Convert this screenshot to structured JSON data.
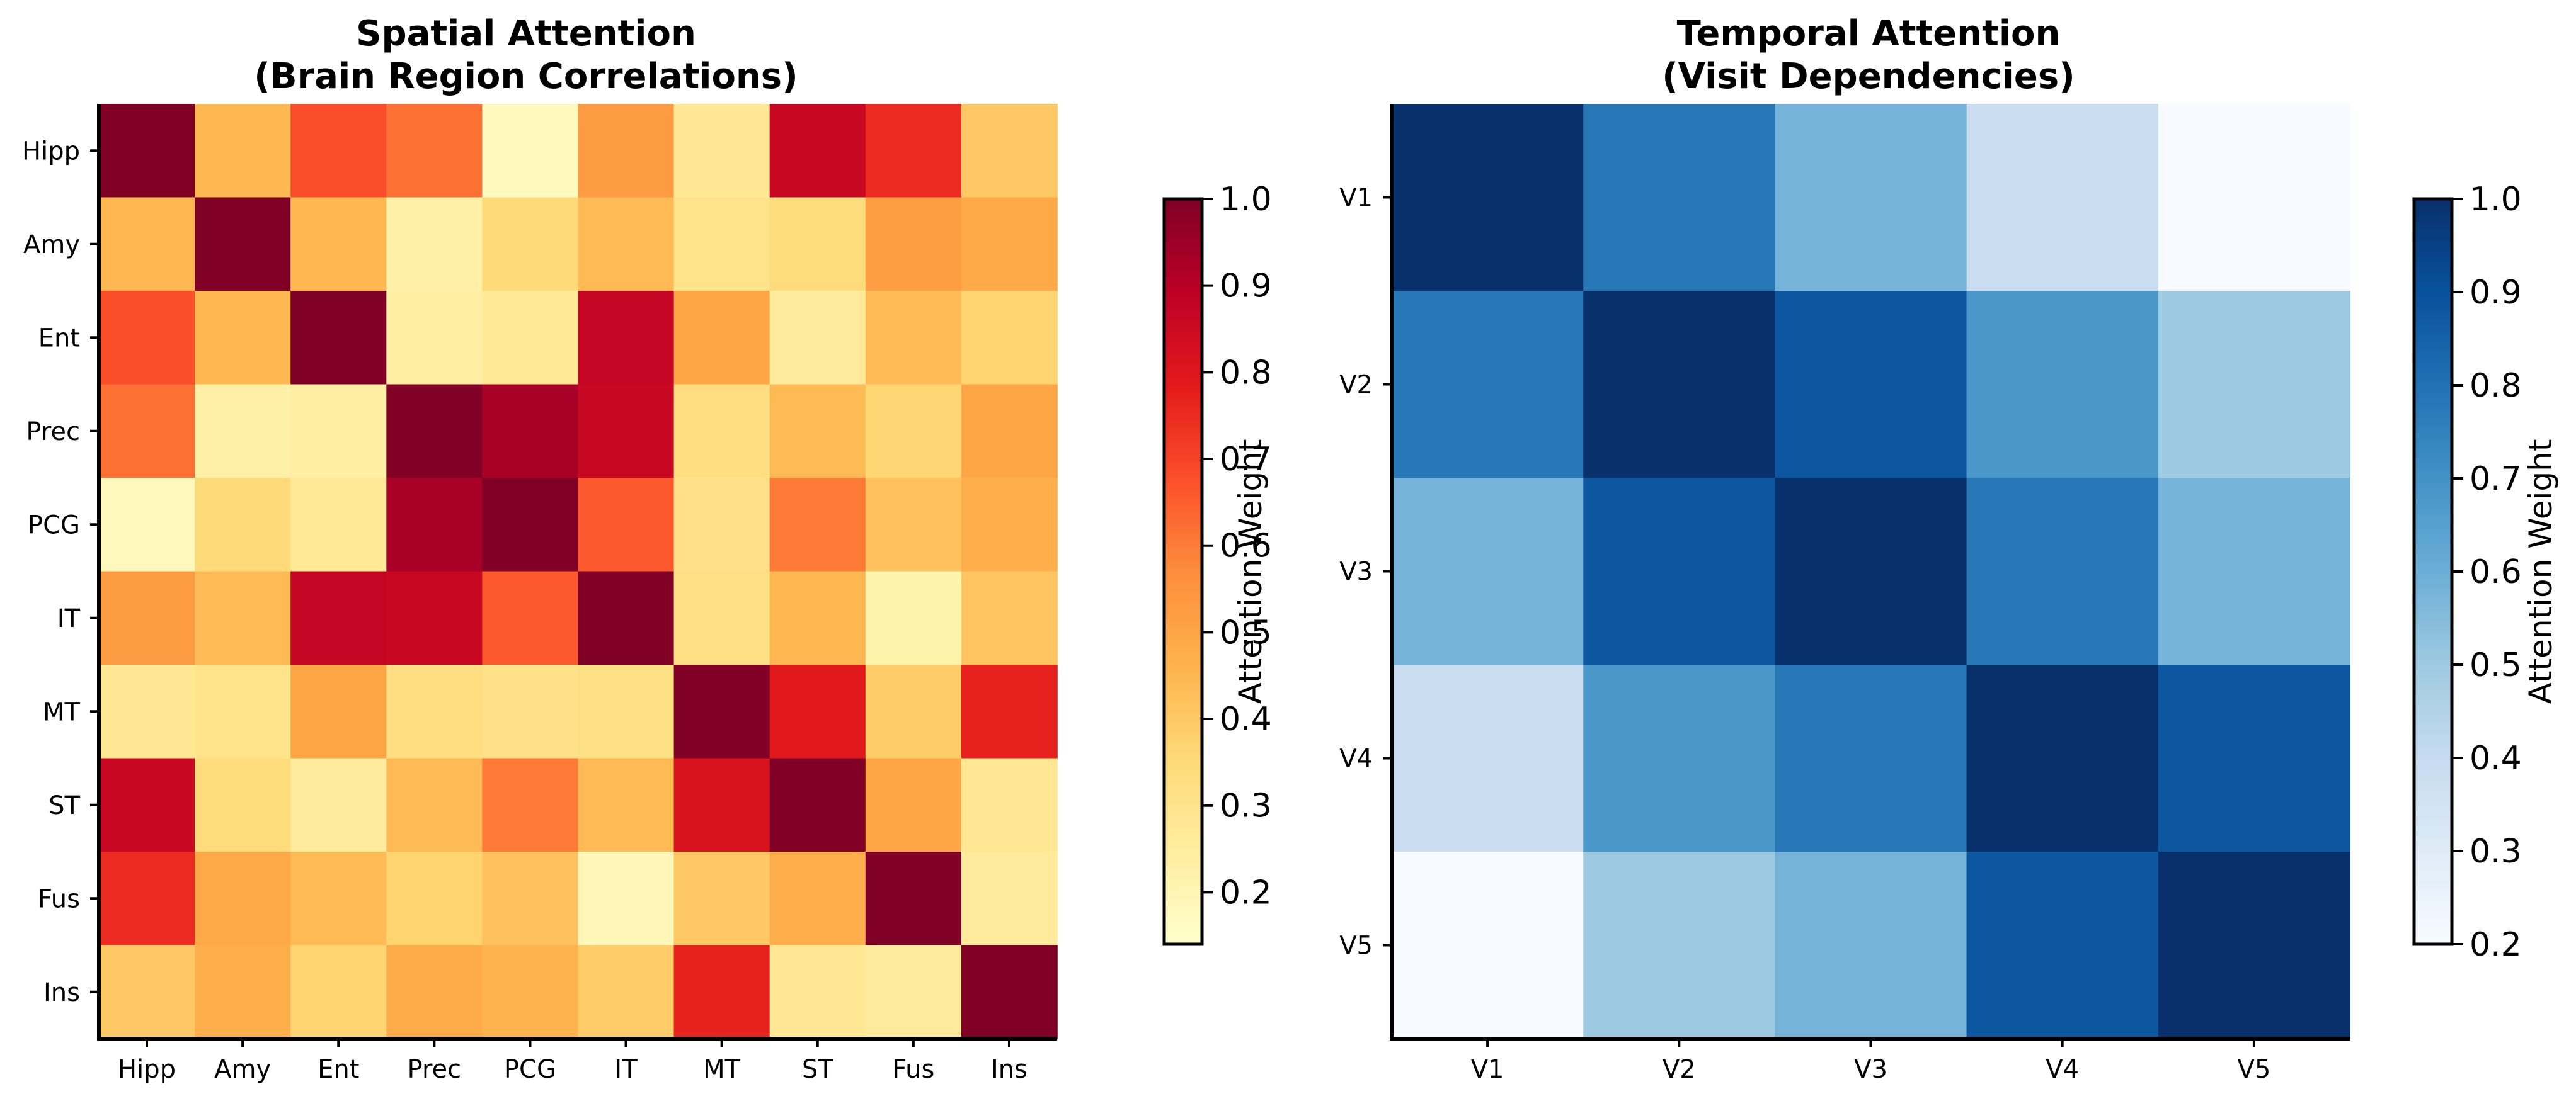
{
  "chart_data": [
    {
      "type": "heatmap",
      "title": "Spatial Attention",
      "subtitle": "(Brain Region Correlations)",
      "x_categories": [
        "Hipp",
        "Amy",
        "Ent",
        "Prec",
        "PCG",
        "IT",
        "MT",
        "ST",
        "Fus",
        "Ins"
      ],
      "y_categories": [
        "Hipp",
        "Amy",
        "Ent",
        "Prec",
        "PCG",
        "IT",
        "MT",
        "ST",
        "Fus",
        "Ins"
      ],
      "values": [
        [
          1.0,
          0.45,
          0.68,
          0.62,
          0.18,
          0.53,
          0.28,
          0.86,
          0.75,
          0.4
        ],
        [
          0.45,
          1.0,
          0.45,
          0.23,
          0.35,
          0.44,
          0.3,
          0.34,
          0.52,
          0.49
        ],
        [
          0.68,
          0.45,
          1.0,
          0.24,
          0.27,
          0.87,
          0.5,
          0.26,
          0.44,
          0.37
        ],
        [
          0.62,
          0.23,
          0.24,
          1.0,
          0.93,
          0.86,
          0.33,
          0.44,
          0.36,
          0.5
        ],
        [
          0.18,
          0.35,
          0.27,
          0.93,
          1.0,
          0.66,
          0.31,
          0.6,
          0.42,
          0.47
        ],
        [
          0.53,
          0.44,
          0.87,
          0.86,
          0.66,
          1.0,
          0.32,
          0.45,
          0.22,
          0.41
        ],
        [
          0.28,
          0.3,
          0.5,
          0.33,
          0.31,
          0.32,
          1.0,
          0.79,
          0.39,
          0.77
        ],
        [
          0.86,
          0.34,
          0.26,
          0.44,
          0.6,
          0.44,
          0.82,
          1.0,
          0.5,
          0.28
        ],
        [
          0.75,
          0.49,
          0.44,
          0.37,
          0.42,
          0.19,
          0.4,
          0.47,
          1.0,
          0.26
        ],
        [
          0.4,
          0.47,
          0.37,
          0.48,
          0.46,
          0.39,
          0.77,
          0.28,
          0.26,
          1.0
        ]
      ],
      "colormap": "YlOrRd",
      "colorbar": {
        "label": "Attention Weight",
        "range": [
          0.14,
          1.0
        ],
        "ticks": [
          0.2,
          0.3,
          0.4,
          0.5,
          0.6,
          0.7,
          0.8,
          0.9,
          1.0
        ]
      }
    },
    {
      "type": "heatmap",
      "title": "Temporal Attention",
      "subtitle": "(Visit Dependencies)",
      "x_categories": [
        "V1",
        "V2",
        "V3",
        "V4",
        "V5"
      ],
      "y_categories": [
        "V1",
        "V2",
        "V3",
        "V4",
        "V5"
      ],
      "values": [
        [
          1.0,
          0.78,
          0.58,
          0.38,
          0.2
        ],
        [
          0.78,
          1.0,
          0.88,
          0.68,
          0.5
        ],
        [
          0.58,
          0.88,
          1.0,
          0.78,
          0.58
        ],
        [
          0.38,
          0.68,
          0.78,
          1.0,
          0.88
        ],
        [
          0.2,
          0.5,
          0.58,
          0.88,
          1.0
        ]
      ],
      "colormap": "Blues",
      "colorbar": {
        "label": "Attention Weight",
        "range": [
          0.2,
          1.0
        ],
        "ticks": [
          0.2,
          0.3,
          0.4,
          0.5,
          0.6,
          0.7,
          0.8,
          0.9,
          1.0
        ]
      }
    }
  ]
}
